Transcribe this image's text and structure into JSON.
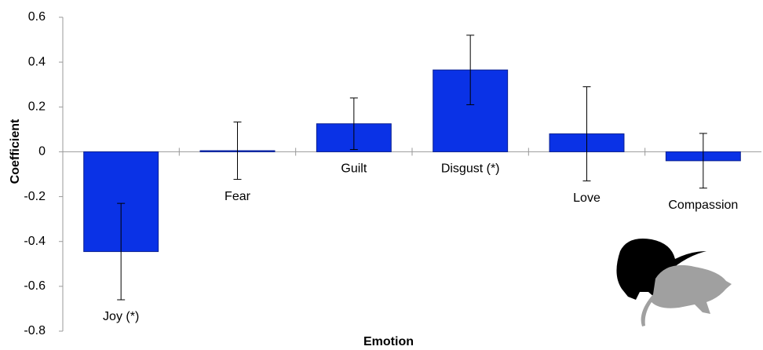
{
  "chart_data": {
    "type": "bar",
    "x_label": "Emotion",
    "y_label": "Coefficient",
    "categories": [
      "Joy (*)",
      "Fear",
      "Guilt",
      "Disgust (*)",
      "Love",
      "Compassion"
    ],
    "values": [
      -0.445,
      0.005,
      0.125,
      0.365,
      0.08,
      -0.04
    ],
    "errors": [
      0.215,
      0.128,
      0.115,
      0.155,
      0.21,
      0.122
    ],
    "color": "#0a32e6",
    "ylim": [
      -0.8,
      0.6
    ],
    "yticks": [
      -0.8,
      -0.6,
      -0.4,
      -0.2,
      0,
      0.2,
      0.4,
      0.6
    ]
  }
}
